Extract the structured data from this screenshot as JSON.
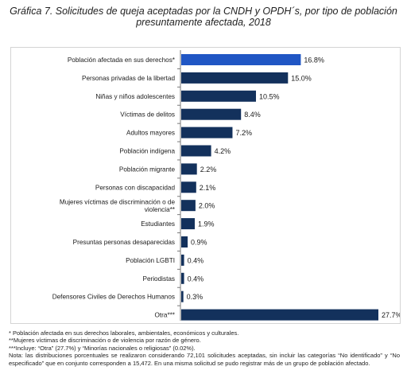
{
  "title_line1": "Gráfica 7. Solicitudes de queja aceptadas por la CNDH y OPDH´s, por tipo de población",
  "title_line2": "presuntamente afectada, 2018",
  "colors": {
    "bar_dark": "#13315c",
    "bar_highlight": "#2056c4"
  },
  "chart_data": {
    "type": "bar",
    "orientation": "horizontal",
    "title": "",
    "xlabel": "",
    "ylabel": "",
    "grid": false,
    "xlim": [
      0,
      27.7
    ],
    "categories": [
      "Población afectada en sus derechos*",
      "Personas privadas de la libertad",
      "Niñas y niños adolescentes",
      "Víctimas de delitos",
      "Adultos mayores",
      "Población indígena",
      "Población migrante",
      "Personas con discapacidad",
      [
        "Mujeres víctimas de discriminación o de",
        "violencia**"
      ],
      "Estudiantes",
      "Presuntas personas desaparecidas",
      "Población LGBTI",
      "Periodistas",
      "Defensores Civiles de Derechos Humanos",
      "Otra***"
    ],
    "values": [
      16.8,
      15.0,
      10.5,
      8.4,
      7.2,
      4.2,
      2.2,
      2.1,
      2.0,
      1.9,
      0.9,
      0.4,
      0.4,
      0.3,
      27.7
    ],
    "value_labels": [
      "16.8%",
      "15.0%",
      "10.5%",
      "8.4%",
      "7.2%",
      "4.2%",
      "2.2%",
      "2.1%",
      "2.0%",
      "1.9%",
      "0.9%",
      "0.4%",
      "0.4%",
      "0.3%",
      "27.7%"
    ],
    "highlight_index": 0
  },
  "notes": {
    "note1": "* Población afectada en sus derechos laborales, ambientales, económicos y culturales.",
    "note2": "**Mujeres víctimas de discriminación o de violencia por razón de género.",
    "note3": "***Incluye: “Otra” (27.7%) y “Minorías nacionales o religiosas” (0.02%).",
    "note4": "Nota: las distribuciones porcentuales se realizaron considerando 72,101 solicitudes aceptadas, sin incluir las categorías “No identificado” y “No especificado” que en conjunto corresponden a 15,472. En una misma solicitud se pudo registrar más de un grupo de población afectado."
  }
}
